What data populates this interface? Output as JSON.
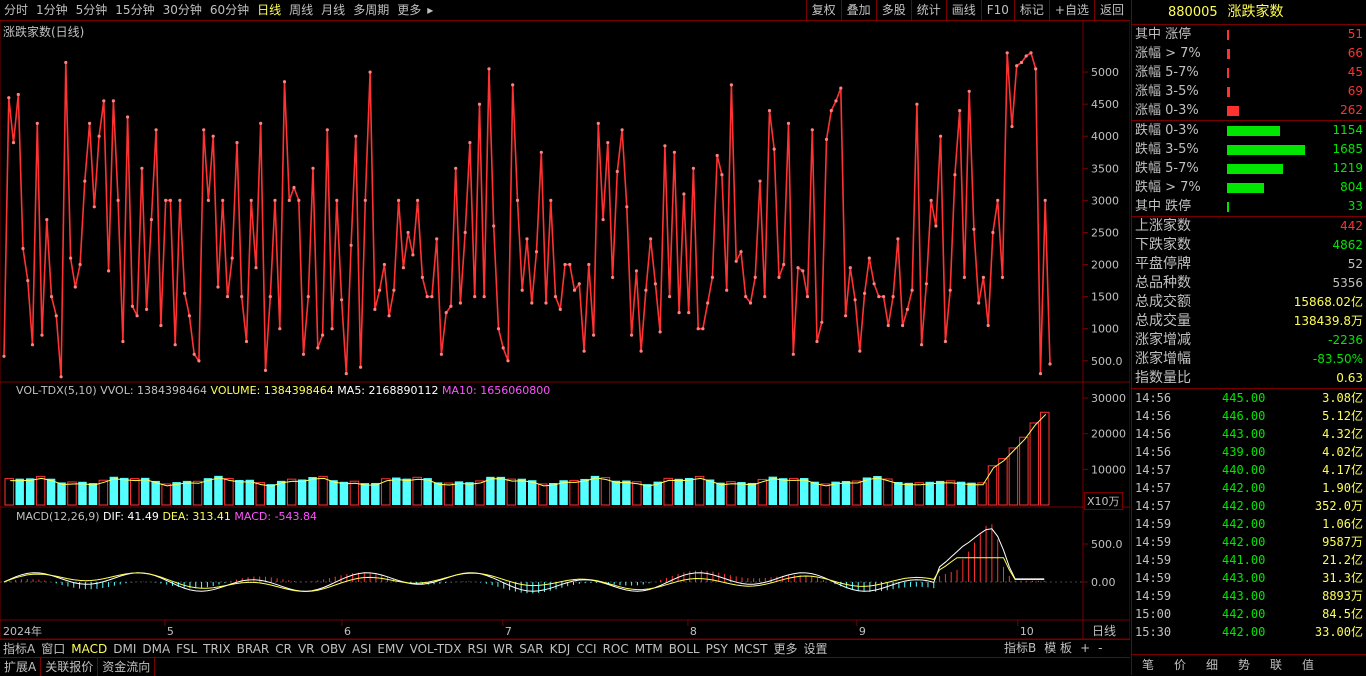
{
  "toolbar": {
    "tabs": [
      "分时",
      "1分钟",
      "5分钟",
      "15分钟",
      "30分钟",
      "60分钟",
      "日线",
      "周线",
      "月线",
      "多周期",
      "更多"
    ],
    "active": "日线",
    "more_arrow": "▸",
    "right_buttons": [
      "复权",
      "叠加",
      "多股",
      "统计",
      "画线",
      "F10",
      "标记",
      "+自选",
      "返回"
    ]
  },
  "panel_title": "涨跌家数(日线)",
  "main_axis": [
    "5000",
    "4500",
    "4000",
    "3500",
    "3000",
    "2500",
    "2000",
    "1500",
    "1000",
    "500.0"
  ],
  "vol": {
    "title": "VOL-TDX(5,10)",
    "vvol": "VVOL: 1384398464",
    "volume": "VOLUME: 1384398464",
    "ma5": "MA5: 2168890112",
    "ma10": "MA10: 1656060800",
    "axis": [
      "30000",
      "20000",
      "10000"
    ],
    "unit": "X10万"
  },
  "macd": {
    "title": "MACD(12,26,9)",
    "dif": "DIF: 41.49",
    "dea": "DEA: 313.41",
    "macd": "MACD: -543.84",
    "axis": [
      "500.0",
      "0.00"
    ]
  },
  "xaxis": {
    "year": "2024年",
    "months": [
      {
        "label": "5",
        "day": 20
      },
      {
        "label": "6",
        "day": 42
      },
      {
        "label": "7",
        "day": 62
      },
      {
        "label": "8",
        "day": 85
      },
      {
        "label": "9",
        "day": 106
      },
      {
        "label": "10",
        "day": 126
      }
    ],
    "right_label": "日线"
  },
  "chart_data": {
    "type": "line",
    "series": [
      {
        "values": [
          570,
          4600,
          3900,
          4650,
          2250,
          1750,
          750,
          4200,
          900,
          2700,
          1500,
          1200,
          250,
          5150,
          2100,
          1650,
          2000,
          3300,
          4200,
          2900,
          4000,
          4550,
          1900,
          4550,
          3000,
          800,
          4300,
          1350,
          1200,
          3500,
          1300,
          2700,
          4100,
          1050,
          3000,
          3000,
          750,
          3000,
          1550,
          1200,
          600,
          500,
          4100,
          3000,
          4000,
          1650,
          3000,
          1500,
          2100,
          3900,
          1500,
          800,
          3000,
          1950,
          4200,
          350,
          1500,
          3000,
          1000,
          4850,
          3000,
          3200,
          3000,
          600,
          1500,
          3500,
          700,
          900,
          4100,
          1000,
          3000,
          1450,
          300,
          2300,
          4000,
          400,
          3000,
          5000,
          1300,
          1600,
          2000,
          1200,
          1600,
          3000,
          1950,
          2500,
          2150,
          3000,
          1800,
          1500,
          1500,
          2400,
          600,
          1250,
          1350,
          3500,
          1400,
          2500,
          3900,
          1500,
          4500,
          1500,
          5050,
          2600,
          1000,
          700,
          500,
          4800,
          3000,
          1600,
          2400,
          1400,
          2200,
          3750,
          1400,
          3000,
          1500,
          1300,
          2000,
          2000,
          1600,
          1700,
          650,
          2000,
          900,
          4200,
          2700,
          3900,
          1800,
          3450,
          4100,
          2900,
          900,
          1900,
          650,
          1600,
          2400,
          1700,
          950,
          3850,
          1500,
          3750,
          1250,
          3100,
          1250,
          3500,
          1000,
          1000,
          1400,
          1800,
          3700,
          3400,
          1600,
          4800,
          2050,
          2200,
          1500,
          1400,
          1800,
          3300,
          1500,
          4400,
          3800,
          1800,
          2000,
          4200,
          600,
          1950,
          1900,
          1500,
          4100,
          800,
          1100,
          3950,
          4400,
          4550,
          4750,
          1200,
          1950,
          1450,
          650,
          1550,
          2100,
          1700,
          1500,
          1500,
          1050,
          1500,
          2400,
          1050,
          1300,
          1600,
          4500,
          750,
          1700,
          3000,
          2600,
          4000,
          800,
          1600,
          3400,
          4400,
          1800,
          4700,
          2550,
          1400,
          1800,
          1050,
          2500,
          3000,
          1800,
          5300,
          4150,
          5100,
          5150,
          5250,
          5300,
          5050,
          300,
          3000,
          450
        ]
      }
    ],
    "ylim": [
      200,
      5500
    ]
  },
  "side": {
    "code": "880005",
    "name": "涨跌家数",
    "breadth": [
      {
        "label": "其中 涨停",
        "value": "51",
        "pct": 0.03,
        "color": "#ff3232",
        "vcolor": "#ff3232"
      },
      {
        "label": "涨幅 > 7%",
        "value": "66",
        "pct": 0.039,
        "color": "#ff3232",
        "vcolor": "#ff3232"
      },
      {
        "label": "涨幅 5-7%",
        "value": "45",
        "pct": 0.027,
        "color": "#ff3232",
        "vcolor": "#ff3232"
      },
      {
        "label": "涨幅 3-5%",
        "value": "69",
        "pct": 0.041,
        "color": "#ff3232",
        "vcolor": "#ff3232"
      },
      {
        "label": "涨幅 0-3%",
        "value": "262",
        "pct": 0.155,
        "color": "#ff3232",
        "vcolor": "#ff3232"
      },
      {
        "label": "跌幅 0-3%",
        "value": "1154",
        "pct": 0.685,
        "color": "#00e600",
        "vcolor": "#00e600"
      },
      {
        "label": "跌幅 3-5%",
        "value": "1685",
        "pct": 1.0,
        "color": "#00e600",
        "vcolor": "#00e600"
      },
      {
        "label": "跌幅 5-7%",
        "value": "1219",
        "pct": 0.723,
        "color": "#00e600",
        "vcolor": "#00e600"
      },
      {
        "label": "跌幅 > 7%",
        "value": "804",
        "pct": 0.477,
        "color": "#00e600",
        "vcolor": "#00e600"
      },
      {
        "label": "其中 跌停",
        "value": "33",
        "pct": 0.02,
        "color": "#00e600",
        "vcolor": "#00e600"
      }
    ],
    "info": [
      {
        "label": "上涨家数",
        "value": "442",
        "color": "#ff3232"
      },
      {
        "label": "下跌家数",
        "value": "4862",
        "color": "#00e600"
      },
      {
        "label": "平盘停牌",
        "value": "52",
        "color": "#c0c0c0"
      },
      {
        "label": "总品种数",
        "value": "5356",
        "color": "#c0c0c0"
      },
      {
        "label": "总成交额",
        "value": "15868.02亿",
        "color": "#ffff54"
      },
      {
        "label": "总成交量",
        "value": "138439.8万",
        "color": "#ffff54"
      },
      {
        "label": "涨家增减",
        "value": "-2236",
        "color": "#00e600"
      },
      {
        "label": "涨家增幅",
        "value": "-83.50%",
        "color": "#00e600"
      },
      {
        "label": "指数量比",
        "value": "0.63",
        "color": "#ffff54"
      }
    ],
    "ticks": [
      {
        "time": "14:56",
        "price": "445.00",
        "vol": "3.08亿"
      },
      {
        "time": "14:56",
        "price": "446.00",
        "vol": "5.12亿"
      },
      {
        "time": "14:56",
        "price": "443.00",
        "vol": "4.32亿"
      },
      {
        "time": "14:56",
        "price": "439.00",
        "vol": "4.02亿"
      },
      {
        "time": "14:57",
        "price": "440.00",
        "vol": "4.17亿"
      },
      {
        "time": "14:57",
        "price": "442.00",
        "vol": "1.90亿"
      },
      {
        "time": "14:57",
        "price": "442.00",
        "vol": "352.0万"
      },
      {
        "time": "14:59",
        "price": "442.00",
        "vol": "1.06亿"
      },
      {
        "time": "14:59",
        "price": "442.00",
        "vol": "9587万"
      },
      {
        "time": "14:59",
        "price": "441.00",
        "vol": "21.2亿"
      },
      {
        "time": "14:59",
        "price": "443.00",
        "vol": "31.3亿"
      },
      {
        "time": "14:59",
        "price": "443.00",
        "vol": "8893万"
      },
      {
        "time": "15:00",
        "price": "442.00",
        "vol": "84.5亿"
      },
      {
        "time": "15:30",
        "price": "442.00",
        "vol": "33.00亿"
      }
    ],
    "bottom_tabs": [
      "笔",
      "价",
      "细",
      "势",
      "联",
      "值"
    ]
  },
  "indicators": {
    "items": [
      "指标A",
      "窗口",
      "MACD",
      "DMI",
      "DMA",
      "FSL",
      "TRIX",
      "BRAR",
      "CR",
      "VR",
      "OBV",
      "ASI",
      "EMV",
      "VOL-TDX",
      "RSI",
      "WR",
      "SAR",
      "KDJ",
      "CCI",
      "ROC",
      "MTM",
      "BOLL",
      "PSY",
      "MCST",
      "更多",
      "设置"
    ],
    "active": "MACD",
    "right": [
      "指标B",
      "模 板",
      "+",
      "-"
    ]
  },
  "extbar": [
    "扩展A",
    "关联报价",
    "资金流向"
  ]
}
